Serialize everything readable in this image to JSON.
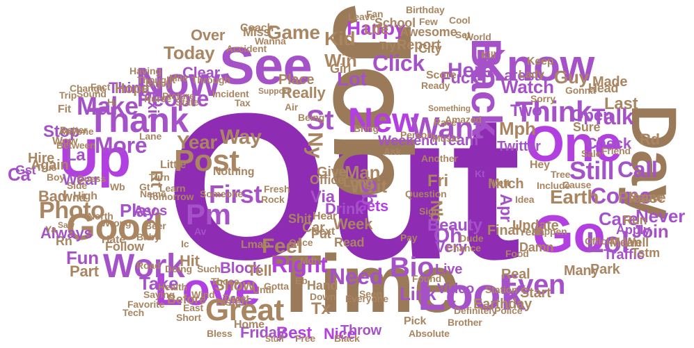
{
  "palette": {
    "purple_dark": "#8e2cb4",
    "purple_bright": "#b23fe0",
    "purple_mid": "#a552c8",
    "orchid": "#b96be0",
    "tan": "#a98561",
    "brown": "#9b7a5a",
    "background": "#ffffff"
  },
  "words": [
    {
      "text": "Out",
      "color": "purple_dark"
    },
    {
      "text": "Job",
      "color": "brown"
    },
    {
      "text": "Time",
      "color": "brown"
    },
    {
      "text": "Day",
      "color": "brown"
    },
    {
      "text": "See",
      "color": "purple_mid"
    },
    {
      "text": "Up",
      "color": "purple_bright"
    },
    {
      "text": "One",
      "color": "purple_bright"
    },
    {
      "text": "Go",
      "color": "purple_bright"
    },
    {
      "text": "Love",
      "color": "purple_bright"
    },
    {
      "text": "Look",
      "color": "purple_mid"
    },
    {
      "text": "Know",
      "color": "purple_mid"
    },
    {
      "text": "Now",
      "color": "purple_mid"
    },
    {
      "text": "New",
      "color": "purple_bright"
    },
    {
      "text": "Back",
      "color": "purple_mid"
    },
    {
      "text": "Thank",
      "color": "purple_mid"
    },
    {
      "text": "Good",
      "color": "tan"
    },
    {
      "text": "Work",
      "color": "purple_mid"
    },
    {
      "text": "Want",
      "color": "purple_mid"
    },
    {
      "text": "Think",
      "color": "purple_mid"
    },
    {
      "text": "Great",
      "color": "tan"
    },
    {
      "text": "Post",
      "color": "tan"
    },
    {
      "text": "First",
      "color": "purple_mid"
    },
    {
      "text": "Make",
      "color": "purple_mid"
    },
    {
      "text": "Lol",
      "color": "purple_mid"
    },
    {
      "text": "Even",
      "color": "purple_mid"
    },
    {
      "text": "Bio",
      "color": "purple_mid"
    },
    {
      "text": "Right",
      "color": "purple_bright"
    },
    {
      "text": "Need",
      "color": "purple_mid"
    },
    {
      "text": "Photo",
      "color": "tan"
    },
    {
      "text": "People",
      "color": "purple_mid"
    },
    {
      "text": "Pm",
      "color": "purple_mid"
    },
    {
      "text": "Year",
      "color": "tan"
    },
    {
      "text": "Still",
      "color": "purple_mid"
    },
    {
      "text": "Come",
      "color": "purple_mid"
    },
    {
      "text": "Call",
      "color": "purple_mid"
    },
    {
      "text": "Earth",
      "color": "tan"
    },
    {
      "text": "More",
      "color": "purple_mid"
    },
    {
      "text": "Way",
      "color": "tan"
    },
    {
      "text": "Game",
      "color": "tan"
    },
    {
      "text": "Click",
      "color": "purple_mid"
    },
    {
      "text": "Happy",
      "color": "purple_bright"
    },
    {
      "text": "Kid",
      "color": "tan"
    },
    {
      "text": "Here",
      "color": "purple_mid"
    },
    {
      "text": "Today",
      "color": "tan"
    },
    {
      "text": "St",
      "color": "purple_mid"
    },
    {
      "text": "Feel",
      "color": "tan"
    },
    {
      "text": "Best",
      "color": "purple_bright"
    },
    {
      "text": "Link",
      "color": "purple_mid"
    },
    {
      "text": "Take",
      "color": "purple_mid"
    },
    {
      "text": "Play",
      "color": "purple_mid"
    },
    {
      "text": "Wait",
      "color": "tan"
    },
    {
      "text": "Gets",
      "color": "purple_bright"
    },
    {
      "text": "Man",
      "color": "tan"
    },
    {
      "text": "Sb",
      "color": "purple_mid"
    },
    {
      "text": "Ny",
      "color": "tan"
    },
    {
      "text": "Oh",
      "color": "purple_mid"
    },
    {
      "text": "Nb",
      "color": "tan"
    },
    {
      "text": "Fri",
      "color": "tan"
    },
    {
      "text": "Apr",
      "color": "purple_mid"
    },
    {
      "text": "Open",
      "color": "purple_mid"
    },
    {
      "text": "Two",
      "color": "purple_mid"
    },
    {
      "text": "Mph",
      "color": "tan"
    },
    {
      "text": "Guy",
      "color": "tan"
    },
    {
      "text": "Talk",
      "color": "purple_mid"
    },
    {
      "text": "Rd",
      "color": "tan"
    },
    {
      "text": "Never",
      "color": "purple_mid"
    },
    {
      "text": "Join",
      "color": "purple_mid"
    },
    {
      "text": "Care",
      "color": "purple_mid"
    },
    {
      "text": "Please",
      "color": "tan"
    },
    {
      "text": "Apply",
      "color": "purple_mid"
    },
    {
      "text": "Well",
      "color": "tan"
    },
    {
      "text": "Mean",
      "color": "tan"
    },
    {
      "text": "Ca",
      "color": "purple_mid"
    },
    {
      "text": "La",
      "color": "purple_mid"
    },
    {
      "text": "Hire",
      "color": "tan"
    },
    {
      "text": "Bad",
      "color": "tan"
    },
    {
      "text": "Stop",
      "color": "purple_mid"
    },
    {
      "text": "Fun",
      "color": "purple_mid"
    },
    {
      "text": "Part",
      "color": "tan"
    },
    {
      "text": "Hit",
      "color": "tan"
    },
    {
      "text": "Show",
      "color": "tan"
    },
    {
      "text": "Block",
      "color": "purple_mid"
    },
    {
      "text": "Tell",
      "color": "tan"
    },
    {
      "text": "Ass",
      "color": "purple_mid"
    },
    {
      "text": "Friday",
      "color": "purple_mid"
    },
    {
      "text": "Nice",
      "color": "purple_bright"
    },
    {
      "text": "Throw",
      "color": "purple_mid"
    },
    {
      "text": "Home",
      "color": "tan"
    },
    {
      "text": "Live",
      "color": "purple_mid"
    },
    {
      "text": "Very",
      "color": "purple_mid"
    },
    {
      "text": "Real",
      "color": "tan"
    },
    {
      "text": "Beauty",
      "color": "purple_mid"
    },
    {
      "text": "Final",
      "color": "tan"
    },
    {
      "text": "Update",
      "color": "tan"
    },
    {
      "text": "Check",
      "color": "purple_mid"
    },
    {
      "text": "Sure",
      "color": "tan"
    },
    {
      "text": "Last",
      "color": "tan"
    },
    {
      "text": "Rt",
      "color": "tan"
    },
    {
      "text": "Fit",
      "color": "tan"
    },
    {
      "text": "Rn",
      "color": "tan"
    },
    {
      "text": "Wear",
      "color": "purple_mid"
    },
    {
      "text": "Follow",
      "color": "tan"
    },
    {
      "text": "Office",
      "color": "tan"
    },
    {
      "text": "Week",
      "color": "tan"
    },
    {
      "text": "Drink",
      "color": "purple_mid"
    },
    {
      "text": "Car",
      "color": "tan"
    },
    {
      "text": "Put",
      "color": "tan"
    },
    {
      "text": "Via",
      "color": "purple_mid"
    },
    {
      "text": "Give",
      "color": "tan"
    },
    {
      "text": "Long",
      "color": "tan"
    },
    {
      "text": "Read",
      "color": "tan"
    },
    {
      "text": "Hand",
      "color": "tan"
    },
    {
      "text": "Tx",
      "color": "tan"
    },
    {
      "text": "Lot",
      "color": "purple_mid"
    },
    {
      "text": "Win",
      "color": "tan"
    },
    {
      "text": "Girl",
      "color": "tan"
    },
    {
      "text": "Place",
      "color": "tan"
    },
    {
      "text": "Really",
      "color": "tan"
    },
    {
      "text": "Report",
      "color": "tan"
    },
    {
      "text": "Watch",
      "color": "purple_mid"
    },
    {
      "text": "Team",
      "color": "purple_mid"
    },
    {
      "text": "Weekend",
      "color": "purple_mid"
    },
    {
      "text": "Exit",
      "color": "purple_mid"
    },
    {
      "text": "Thing",
      "color": "purple_mid"
    },
    {
      "text": "Clear",
      "color": "purple_mid"
    },
    {
      "text": "Over",
      "color": "tan"
    },
    {
      "text": "Miss",
      "color": "tan"
    },
    {
      "text": "Little",
      "color": "tan"
    },
    {
      "text": "Asos",
      "color": "purple_mid"
    },
    {
      "text": "Always",
      "color": "purple_mid"
    },
    {
      "text": "Twitter",
      "color": "purple_mid"
    },
    {
      "text": "Latest",
      "color": "purple_mid"
    },
    {
      "text": "Life",
      "color": "tan"
    },
    {
      "text": "School",
      "color": "tan"
    },
    {
      "text": "Awesome",
      "color": "tan"
    },
    {
      "text": "Fuck",
      "color": "purple_mid"
    },
    {
      "text": "Made",
      "color": "tan"
    },
    {
      "text": "Lmao",
      "color": "tan"
    },
    {
      "text": "Earthday",
      "color": "tan"
    },
    {
      "text": "Traffic",
      "color": "purple_mid"
    },
    {
      "text": "Park",
      "color": "tan"
    },
    {
      "text": "Many",
      "color": "tan"
    },
    {
      "text": "Great",
      "color": "tan"
    },
    {
      "text": "Gst",
      "color": "purple_mid"
    },
    {
      "text": "Again",
      "color": "tan"
    },
    {
      "text": "Hope",
      "color": "tan"
    },
    {
      "text": "Video",
      "color": "purple_mid"
    },
    {
      "text": "Start",
      "color": "tan"
    },
    {
      "text": "Listen",
      "color": "tan"
    },
    {
      "text": "Before",
      "color": "tan"
    },
    {
      "text": "Much",
      "color": "tan"
    },
    {
      "text": "Hey",
      "color": "tan"
    },
    {
      "text": "Damn",
      "color": "tan"
    },
    {
      "text": "Yeah",
      "color": "tan"
    },
    {
      "text": "Run",
      "color": "tan"
    },
    {
      "text": "Same",
      "color": "tan"
    },
    {
      "text": "Tstm",
      "color": "tan"
    },
    {
      "text": "Keep",
      "color": "tan"
    },
    {
      "text": "Head",
      "color": "tan"
    },
    {
      "text": "Someone",
      "color": "tan"
    },
    {
      "text": "Nothing",
      "color": "tan"
    },
    {
      "text": "Hear",
      "color": "tan"
    },
    {
      "text": "Shit",
      "color": "tan"
    },
    {
      "text": "Next",
      "color": "tan"
    },
    {
      "text": "Once",
      "color": "tan"
    },
    {
      "text": "Everyone",
      "color": "tan"
    },
    {
      "text": "Seen",
      "color": "tan"
    },
    {
      "text": "Found",
      "color": "tan"
    },
    {
      "text": "Those",
      "color": "tan"
    },
    {
      "text": "Doing",
      "color": "tan"
    },
    {
      "text": "Road",
      "color": "tan"
    },
    {
      "text": "Hate",
      "color": "tan"
    },
    {
      "text": "Baby",
      "color": "tan"
    },
    {
      "text": "Wnd",
      "color": "tan"
    },
    {
      "text": "High",
      "color": "tan"
    },
    {
      "text": "Ya",
      "color": "tan"
    },
    {
      "text": "Side",
      "color": "tan"
    },
    {
      "text": "Saw",
      "color": "tan"
    },
    {
      "text": "Boy",
      "color": "tan"
    },
    {
      "text": "Wow",
      "color": "tan"
    },
    {
      "text": "Anyone",
      "color": "tan"
    },
    {
      "text": "Better",
      "color": "tan"
    },
    {
      "text": "Between",
      "color": "tan"
    },
    {
      "text": "Picture",
      "color": "tan"
    },
    {
      "text": "State",
      "color": "tan"
    },
    {
      "text": "Incident",
      "color": "tan"
    },
    {
      "text": "Support",
      "color": "tan"
    },
    {
      "text": "Accident",
      "color": "tan"
    },
    {
      "text": "Coach",
      "color": "tan"
    },
    {
      "text": "Wanna",
      "color": "tan"
    },
    {
      "text": "Leave",
      "color": "tan"
    },
    {
      "text": "Fan",
      "color": "tan"
    },
    {
      "text": "Birthday",
      "color": "tan"
    },
    {
      "text": "Few",
      "color": "tan"
    },
    {
      "text": "Cool",
      "color": "tan"
    },
    {
      "text": "City",
      "color": "tan"
    },
    {
      "text": "Try",
      "color": "tan"
    },
    {
      "text": "Score",
      "color": "tan"
    },
    {
      "text": "Set",
      "color": "tan"
    },
    {
      "text": "World",
      "color": "tan"
    },
    {
      "text": "Kill",
      "color": "tan"
    },
    {
      "text": "Lady",
      "color": "tan"
    },
    {
      "text": "Ready",
      "color": "tan"
    },
    {
      "text": "Race",
      "color": "tan"
    },
    {
      "text": "Music",
      "color": "tan"
    },
    {
      "text": "Amazed",
      "color": "tan"
    },
    {
      "text": "Something",
      "color": "tan"
    },
    {
      "text": "Person",
      "color": "tan"
    },
    {
      "text": "Ask",
      "color": "tan"
    },
    {
      "text": "Bring",
      "color": "tan"
    },
    {
      "text": "Being",
      "color": "tan"
    },
    {
      "text": "Air",
      "color": "tan"
    },
    {
      "text": "Tax",
      "color": "tan"
    },
    {
      "text": "Through",
      "color": "tan"
    },
    {
      "text": "Mile",
      "color": "tan"
    },
    {
      "text": "Enjoy",
      "color": "tan"
    },
    {
      "text": "Nurse",
      "color": "tan"
    },
    {
      "text": "Thought",
      "color": "tan"
    },
    {
      "text": "Having",
      "color": "tan"
    },
    {
      "text": "Sound",
      "color": "tan"
    },
    {
      "text": "Trip",
      "color": "tan"
    },
    {
      "text": "Change",
      "color": "tan"
    },
    {
      "text": "Fact",
      "color": "tan"
    },
    {
      "text": "Hi",
      "color": "tan"
    },
    {
      "text": "Lane",
      "color": "tan"
    },
    {
      "text": "Turn",
      "color": "tan"
    },
    {
      "text": "Tomorrow",
      "color": "tan"
    },
    {
      "text": "Learn",
      "color": "tan"
    },
    {
      "text": "Pick",
      "color": "tan"
    },
    {
      "text": "Absolute",
      "color": "tan"
    },
    {
      "text": "Definitely",
      "color": "tan"
    },
    {
      "text": "Brother",
      "color": "tan"
    },
    {
      "text": "Black",
      "color": "tan"
    },
    {
      "text": "Free",
      "color": "tan"
    },
    {
      "text": "Stuff",
      "color": "tan"
    },
    {
      "text": "Bless",
      "color": "tan"
    },
    {
      "text": "Short",
      "color": "tan"
    },
    {
      "text": "Health",
      "color": "tan"
    },
    {
      "text": "Saying",
      "color": "tan"
    },
    {
      "text": "Favorite",
      "color": "tan"
    },
    {
      "text": "Tech",
      "color": "tan"
    },
    {
      "text": "Station",
      "color": "tan"
    },
    {
      "text": "Police",
      "color": "tan"
    },
    {
      "text": "Idea",
      "color": "tan"
    },
    {
      "text": "Include",
      "color": "tan"
    },
    {
      "text": "Cause",
      "color": "tan"
    },
    {
      "text": "Official",
      "color": "tan"
    },
    {
      "text": "Sale",
      "color": "tan"
    },
    {
      "text": "Friend",
      "color": "tan"
    },
    {
      "text": "Gonna",
      "color": "tan"
    },
    {
      "text": "Sorry",
      "color": "tan"
    },
    {
      "text": "Happen",
      "color": "tan"
    },
    {
      "text": "Chance",
      "color": "tan"
    },
    {
      "text": "Dude",
      "color": "tan"
    },
    {
      "text": "Wrong",
      "color": "tan"
    },
    {
      "text": "North",
      "color": "tan"
    },
    {
      "text": "Guess",
      "color": "tan"
    },
    {
      "text": "Name",
      "color": "tan"
    },
    {
      "text": "Such",
      "color": "tan"
    },
    {
      "text": "Until",
      "color": "tan"
    },
    {
      "text": "Down",
      "color": "tan"
    },
    {
      "text": "Gotta",
      "color": "tan"
    },
    {
      "text": "Tweet",
      "color": "tan"
    },
    {
      "text": "East",
      "color": "tan"
    },
    {
      "text": "Wind",
      "color": "tan"
    },
    {
      "text": "Rock",
      "color": "tan"
    },
    {
      "text": "Fresh",
      "color": "tan"
    },
    {
      "text": "Beer",
      "color": "tan"
    },
    {
      "text": "Pay",
      "color": "tan"
    },
    {
      "text": "Sign",
      "color": "tan"
    },
    {
      "text": "Question",
      "color": "tan"
    },
    {
      "text": "Another",
      "color": "tan"
    },
    {
      "text": "Left",
      "color": "tan"
    },
    {
      "text": "Food",
      "color": "tan"
    },
    {
      "text": "Tree",
      "color": "tan"
    },
    {
      "text": "True",
      "color": "tan"
    },
    {
      "text": "Wb",
      "color": "tan"
    },
    {
      "text": "Mdt",
      "color": "tan"
    },
    {
      "text": "Eb",
      "color": "tan"
    },
    {
      "text": "Ic",
      "color": "tan"
    },
    {
      "text": "Gt",
      "color": "tan"
    },
    {
      "text": "Av",
      "color": "purple_mid"
    },
    {
      "text": "Kt",
      "color": "purple_mid"
    }
  ]
}
